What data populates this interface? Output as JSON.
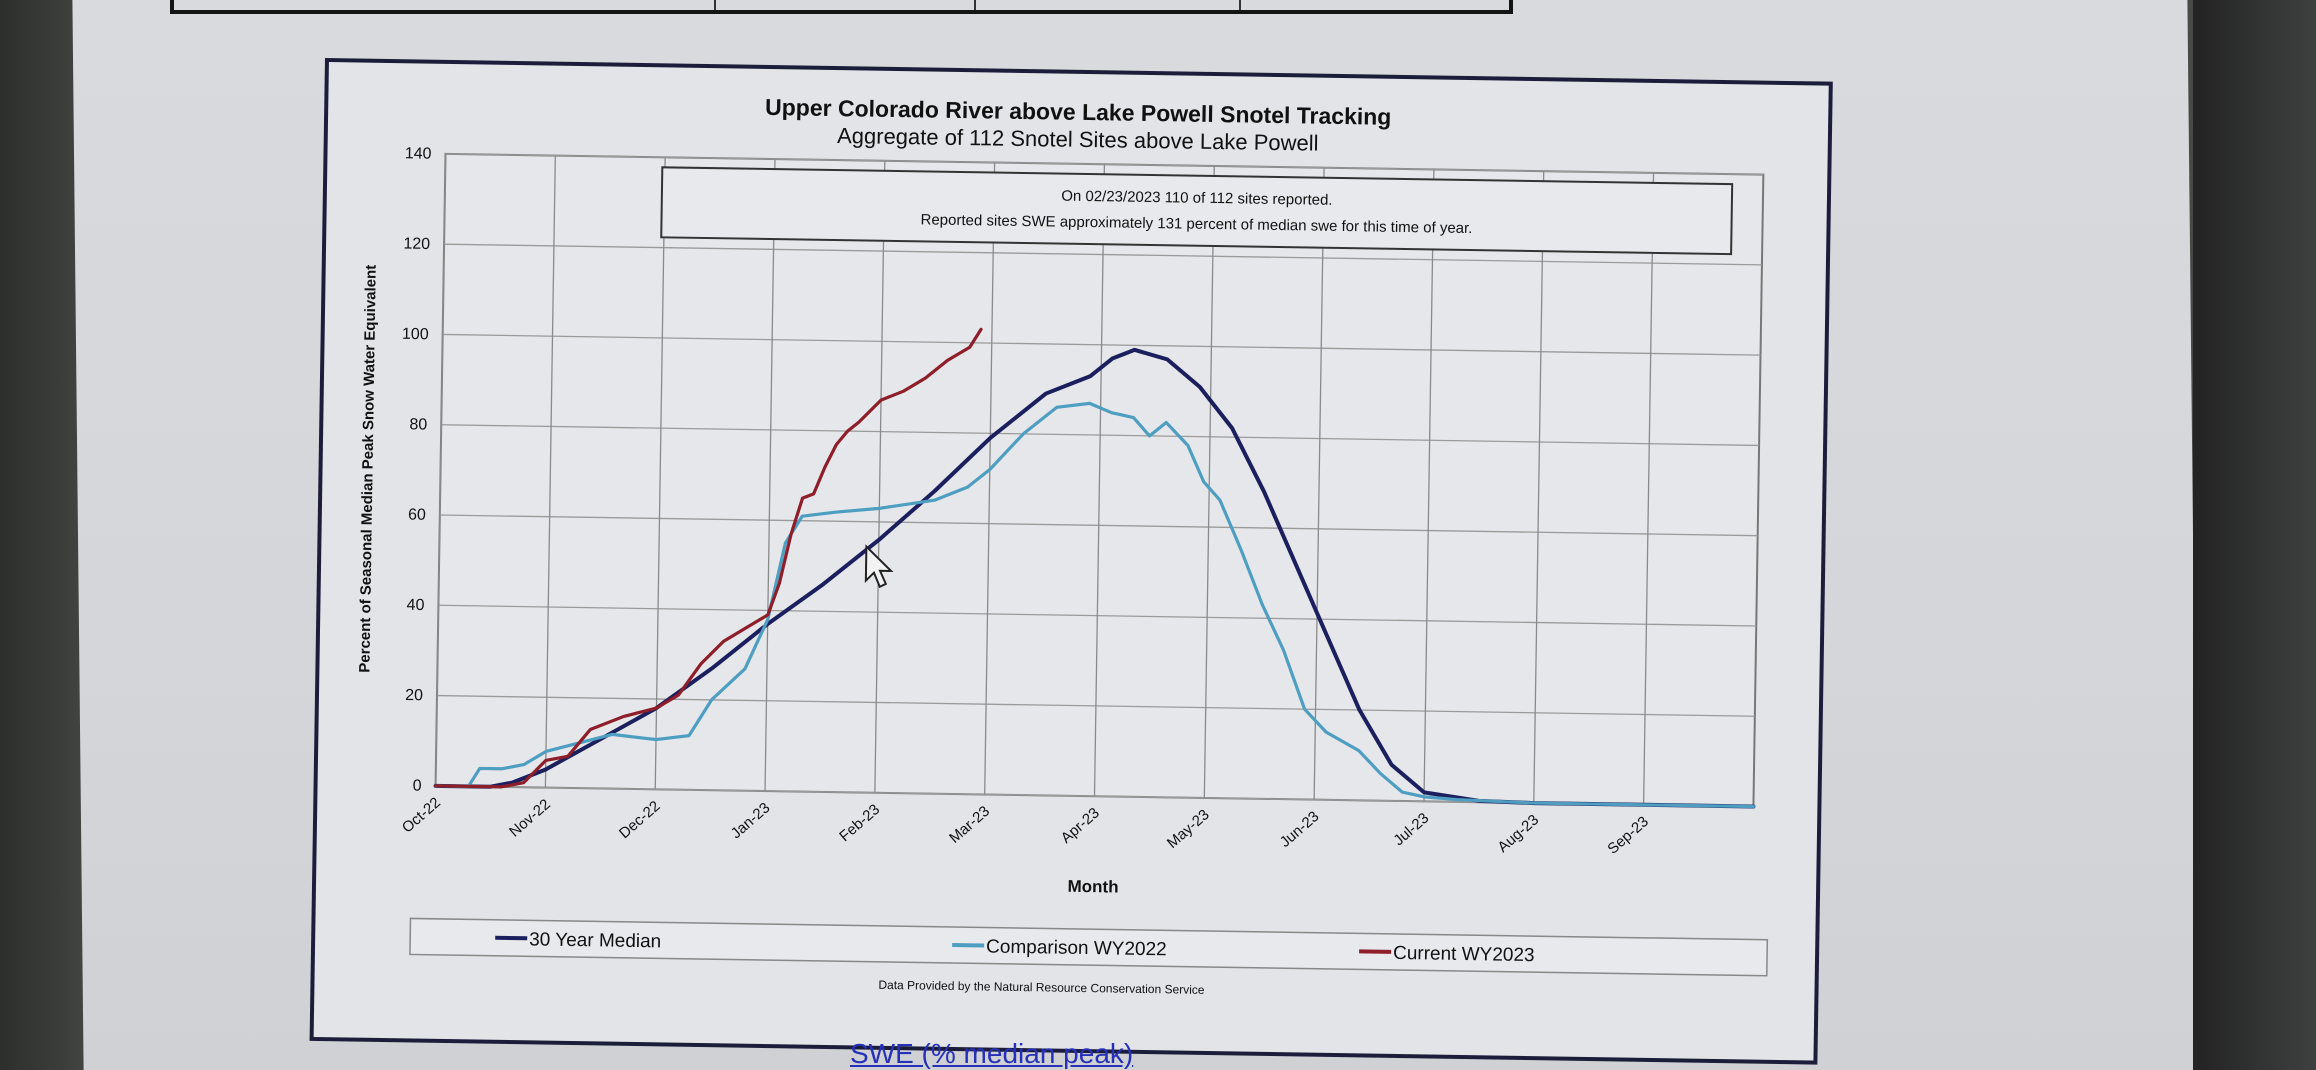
{
  "page": {
    "link_text": "SWE (% median peak)"
  },
  "chart_data": {
    "type": "line",
    "title": "Upper Colorado River above Lake Powell Snotel Tracking",
    "subtitle": "Aggregate of 112 Snotel Sites above Lake Powell",
    "xlabel": "Month",
    "ylabel": "Percent of Seasonal Median Peak Snow Water Equivalent",
    "ylim": [
      0,
      140
    ],
    "yticks": [
      0,
      20,
      40,
      60,
      80,
      100,
      120,
      140
    ],
    "xlim": [
      0,
      12
    ],
    "xticks": [
      "Oct-22",
      "Nov-22",
      "Dec-22",
      "Jan-23",
      "Feb-23",
      "Mar-23",
      "Apr-23",
      "May-23",
      "Jun-23",
      "Jul-23",
      "Aug-23",
      "Sep-23"
    ],
    "grid": true,
    "legend_position": "bottom",
    "annotation": [
      "On 02/23/2023 110 of 112 sites reported.",
      "Reported sites SWE approximately 131 percent of median swe for this time of year."
    ],
    "source": "Data Provided by  the Natural Resource Conservation Service",
    "colors": {
      "median": "#1c1f5e",
      "comparison": "#4e9ec2",
      "current": "#8e1e2a"
    },
    "series": [
      {
        "name": "30 Year Median",
        "key": "median",
        "x": [
          0,
          0.5,
          0.7,
          1.0,
          1.5,
          2.0,
          2.5,
          3.0,
          3.5,
          4.0,
          4.5,
          5.0,
          5.5,
          5.9,
          6.1,
          6.3,
          6.6,
          6.9,
          7.2,
          7.5,
          7.8,
          8.1,
          8.4,
          8.7,
          9.0,
          9.5,
          10.0,
          11.0,
          12.0
        ],
        "y": [
          0,
          0,
          1,
          4,
          11,
          18,
          27,
          37,
          46,
          56,
          67,
          79,
          89,
          93,
          97,
          99,
          97,
          91,
          82,
          68,
          52,
          36,
          20,
          8,
          2,
          0.3,
          0,
          0,
          0
        ]
      },
      {
        "name": "Comparison WY2022",
        "key": "comparison",
        "x": [
          0,
          0.3,
          0.4,
          0.6,
          0.8,
          1.0,
          1.3,
          1.6,
          2.0,
          2.3,
          2.5,
          2.8,
          3.0,
          3.15,
          3.3,
          3.6,
          4.0,
          4.5,
          4.8,
          5.0,
          5.3,
          5.6,
          5.9,
          6.1,
          6.3,
          6.45,
          6.6,
          6.8,
          6.95,
          7.1,
          7.3,
          7.5,
          7.7,
          7.9,
          8.1,
          8.4,
          8.6,
          8.8,
          9.0,
          9.3,
          10.0,
          12.0
        ],
        "y": [
          0,
          0,
          4,
          4,
          5,
          8,
          10,
          12,
          11,
          12,
          20,
          27,
          38,
          55,
          61,
          62,
          63,
          65,
          68,
          72,
          80,
          86,
          87,
          85,
          84,
          80,
          83,
          78,
          70,
          66,
          55,
          43,
          33,
          20,
          15,
          11,
          6,
          2,
          1,
          0.5,
          0,
          0
        ]
      },
      {
        "name": "Current WY2023",
        "key": "current",
        "x": [
          0,
          0.6,
          0.8,
          1.0,
          1.2,
          1.4,
          1.7,
          2.0,
          2.2,
          2.4,
          2.6,
          2.8,
          3.0,
          3.1,
          3.2,
          3.3,
          3.4,
          3.5,
          3.6,
          3.7,
          3.8,
          4.0,
          4.2,
          4.4,
          4.6,
          4.8,
          4.9
        ],
        "y": [
          0,
          0,
          1,
          6,
          7,
          13,
          16,
          18,
          21,
          28,
          33,
          36,
          39,
          46,
          57,
          65,
          66,
          72,
          77,
          80,
          82,
          87,
          89,
          92,
          96,
          99,
          103
        ]
      }
    ]
  }
}
